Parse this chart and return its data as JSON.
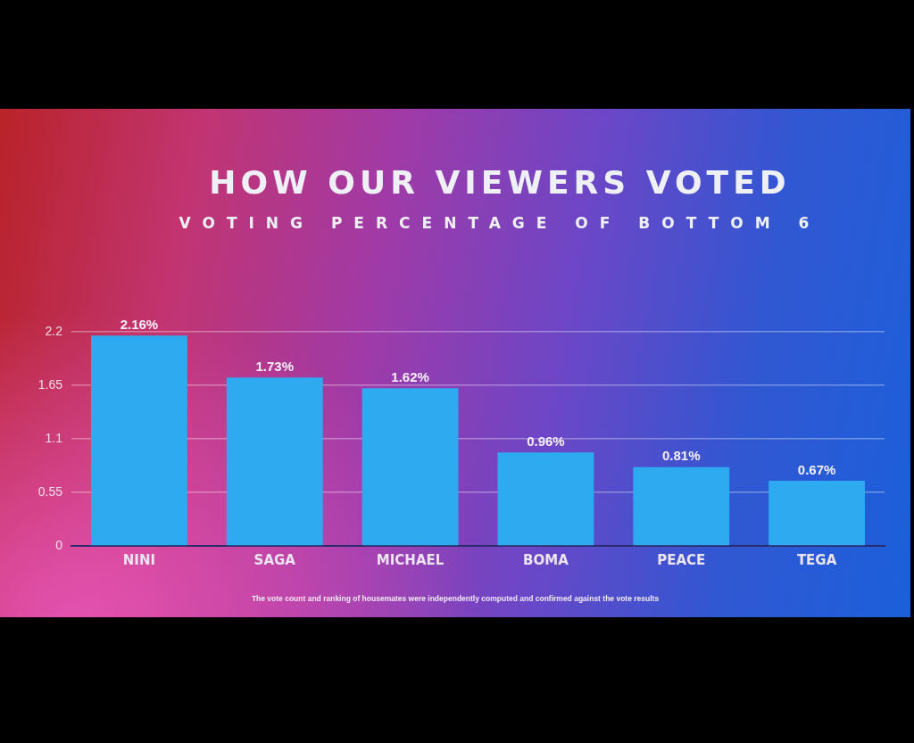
{
  "chart_data": {
    "type": "bar",
    "title": "HOW OUR VIEWERS VOTED",
    "subtitle": "VOTING PERCENTAGE OF BOTTOM 6",
    "categories": [
      "NINI",
      "SAGA",
      "MICHAEL",
      "BOMA",
      "PEACE",
      "TEGA"
    ],
    "values": [
      2.16,
      1.73,
      1.62,
      0.96,
      0.81,
      0.67
    ],
    "value_labels": [
      "2.16%",
      "1.73%",
      "1.62%",
      "0.96%",
      "0.81%",
      "0.67%"
    ],
    "color": "#2eaaf0",
    "ylim": [
      0,
      2.2
    ],
    "yticks": [
      0,
      0.55,
      1.1,
      1.65,
      2.2
    ],
    "grid": "y",
    "annotations": [
      "The vote count and ranking of housemates were independently computed and confirmed against the vote results"
    ]
  }
}
